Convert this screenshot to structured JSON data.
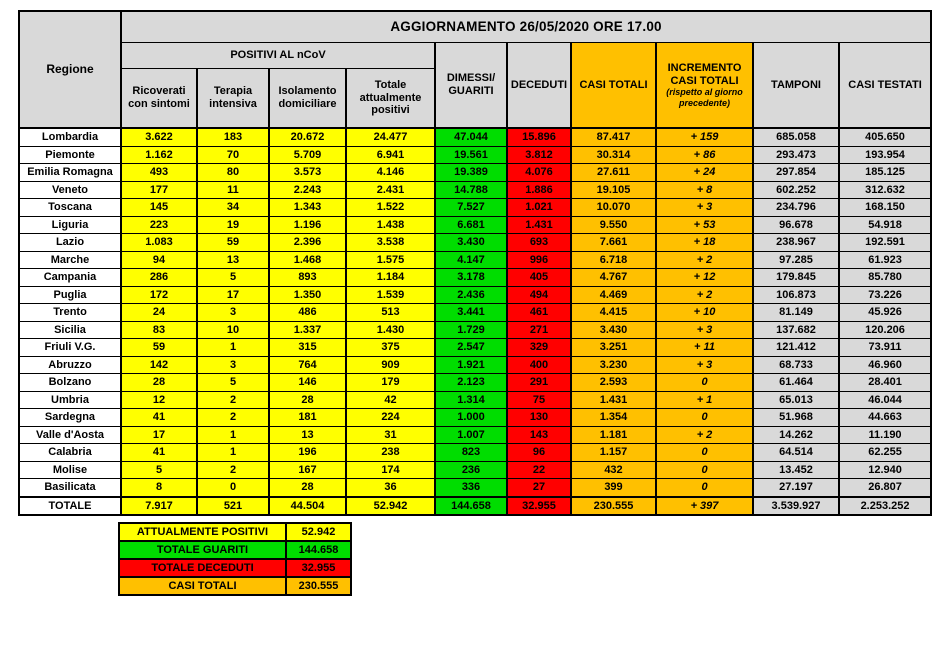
{
  "chart_data": {
    "type": "table",
    "title": "AGGIORNAMENTO 26/05/2020 ORE 17.00",
    "region_column_header": "Regione",
    "group_header": "POSITIVI AL nCoV",
    "columns": [
      "Ricoverati con sintomi",
      "Terapia intensiva",
      "Isolamento domiciliare",
      "Totale attualmente positivi",
      "DIMESSI/ GUARITI",
      "DECEDUTI",
      "CASI TOTALI",
      "INCREMENTO CASI TOTALI",
      "TAMPONI",
      "CASI TESTATI"
    ],
    "incremento_note": "(rispetto al giorno precedente)",
    "rows": [
      {
        "region": "Lombardia",
        "values": [
          "3.622",
          "183",
          "20.672",
          "24.477",
          "47.044",
          "15.896",
          "87.417",
          "+ 159",
          "685.058",
          "405.650"
        ]
      },
      {
        "region": "Piemonte",
        "values": [
          "1.162",
          "70",
          "5.709",
          "6.941",
          "19.561",
          "3.812",
          "30.314",
          "+ 86",
          "293.473",
          "193.954"
        ]
      },
      {
        "region": "Emilia Romagna",
        "values": [
          "493",
          "80",
          "3.573",
          "4.146",
          "19.389",
          "4.076",
          "27.611",
          "+ 24",
          "297.854",
          "185.125"
        ]
      },
      {
        "region": "Veneto",
        "values": [
          "177",
          "11",
          "2.243",
          "2.431",
          "14.788",
          "1.886",
          "19.105",
          "+ 8",
          "602.252",
          "312.632"
        ]
      },
      {
        "region": "Toscana",
        "values": [
          "145",
          "34",
          "1.343",
          "1.522",
          "7.527",
          "1.021",
          "10.070",
          "+ 3",
          "234.796",
          "168.150"
        ]
      },
      {
        "region": "Liguria",
        "values": [
          "223",
          "19",
          "1.196",
          "1.438",
          "6.681",
          "1.431",
          "9.550",
          "+ 53",
          "96.678",
          "54.918"
        ]
      },
      {
        "region": "Lazio",
        "values": [
          "1.083",
          "59",
          "2.396",
          "3.538",
          "3.430",
          "693",
          "7.661",
          "+ 18",
          "238.967",
          "192.591"
        ]
      },
      {
        "region": "Marche",
        "values": [
          "94",
          "13",
          "1.468",
          "1.575",
          "4.147",
          "996",
          "6.718",
          "+ 2",
          "97.285",
          "61.923"
        ]
      },
      {
        "region": "Campania",
        "values": [
          "286",
          "5",
          "893",
          "1.184",
          "3.178",
          "405",
          "4.767",
          "+ 12",
          "179.845",
          "85.780"
        ]
      },
      {
        "region": "Puglia",
        "values": [
          "172",
          "17",
          "1.350",
          "1.539",
          "2.436",
          "494",
          "4.469",
          "+ 2",
          "106.873",
          "73.226"
        ]
      },
      {
        "region": "Trento",
        "values": [
          "24",
          "3",
          "486",
          "513",
          "3.441",
          "461",
          "4.415",
          "+ 10",
          "81.149",
          "45.926"
        ]
      },
      {
        "region": "Sicilia",
        "values": [
          "83",
          "10",
          "1.337",
          "1.430",
          "1.729",
          "271",
          "3.430",
          "+ 3",
          "137.682",
          "120.206"
        ]
      },
      {
        "region": "Friuli V.G.",
        "values": [
          "59",
          "1",
          "315",
          "375",
          "2.547",
          "329",
          "3.251",
          "+ 11",
          "121.412",
          "73.911"
        ]
      },
      {
        "region": "Abruzzo",
        "values": [
          "142",
          "3",
          "764",
          "909",
          "1.921",
          "400",
          "3.230",
          "+ 3",
          "68.733",
          "46.960"
        ]
      },
      {
        "region": "Bolzano",
        "values": [
          "28",
          "5",
          "146",
          "179",
          "2.123",
          "291",
          "2.593",
          "0",
          "61.464",
          "28.401"
        ]
      },
      {
        "region": "Umbria",
        "values": [
          "12",
          "2",
          "28",
          "42",
          "1.314",
          "75",
          "1.431",
          "+ 1",
          "65.013",
          "46.044"
        ]
      },
      {
        "region": "Sardegna",
        "values": [
          "41",
          "2",
          "181",
          "224",
          "1.000",
          "130",
          "1.354",
          "0",
          "51.968",
          "44.663"
        ]
      },
      {
        "region": "Valle d'Aosta",
        "values": [
          "17",
          "1",
          "13",
          "31",
          "1.007",
          "143",
          "1.181",
          "+ 2",
          "14.262",
          "11.190"
        ]
      },
      {
        "region": "Calabria",
        "values": [
          "41",
          "1",
          "196",
          "238",
          "823",
          "96",
          "1.157",
          "0",
          "64.514",
          "62.255"
        ]
      },
      {
        "region": "Molise",
        "values": [
          "5",
          "2",
          "167",
          "174",
          "236",
          "22",
          "432",
          "0",
          "13.452",
          "12.940"
        ]
      },
      {
        "region": "Basilicata",
        "values": [
          "8",
          "0",
          "28",
          "36",
          "336",
          "27",
          "399",
          "0",
          "27.197",
          "26.807"
        ]
      }
    ],
    "total": {
      "region": "TOTALE",
      "values": [
        "7.917",
        "521",
        "44.504",
        "52.942",
        "144.658",
        "32.955",
        "230.555",
        "+ 397",
        "3.539.927",
        "2.253.252"
      ]
    },
    "summary": [
      {
        "label": "ATTUALMENTE POSITIVI",
        "value": "52.942"
      },
      {
        "label": "TOTALE GUARITI",
        "value": "144.658"
      },
      {
        "label": "TOTALE DECEDUTI",
        "value": "32.955"
      },
      {
        "label": "CASI TOTALI",
        "value": "230.555"
      }
    ],
    "colors": {
      "header_gray": "#d9d9d9",
      "positivi_yellow": "#ffff00",
      "guariti_green": "#00dd00",
      "deceduti_red": "#ff0000",
      "totali_orange": "#ffc000",
      "tamponi_gray": "#d9d9d9"
    }
  }
}
